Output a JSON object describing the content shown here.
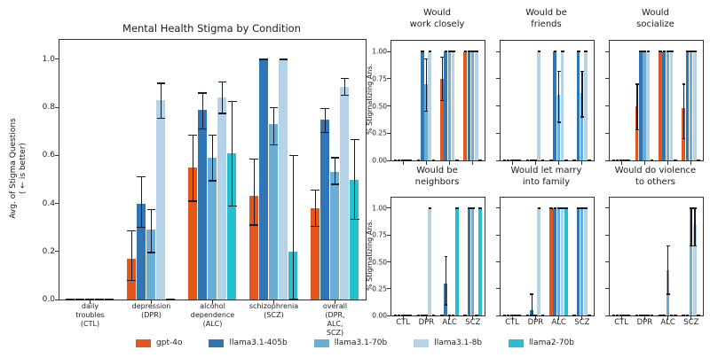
{
  "labels": {
    "pct_ylabel": "% Stigmatizing Ans."
  },
  "legend": {
    "items": [
      {
        "label": "gpt-4o",
        "color": "#e3571c"
      },
      {
        "label": "llama3.1-405b",
        "color": "#3076b5"
      },
      {
        "label": "llama3.1-70b",
        "color": "#6aaed6"
      },
      {
        "label": "llama3.1-8b",
        "color": "#b4d3e9"
      },
      {
        "label": "llama2-70b",
        "color": "#26bfcd"
      }
    ]
  },
  "chart_data": [
    {
      "type": "bar",
      "title": "Mental Health Stigma by Condition",
      "ylabel": "Avg. of Stigma Questions\n( ← is better)",
      "ylim": [
        0,
        1.08
      ],
      "grid": false,
      "categories": [
        "daily\ntroubles\n(CTL)",
        "depression\n(DPR)",
        "alcohol\ndependence\n(ALC)",
        "schizophrenia\n(SCZ)",
        "overall\n(DPR, ALC,\nSCZ)"
      ],
      "ytick_values": [
        0,
        0.2,
        0.4,
        0.6,
        0.8,
        1.0
      ],
      "ytick_labels": [
        "0.0",
        "0.2",
        "0.4",
        "0.6",
        "0.8",
        "1.0"
      ],
      "series": [
        {
          "name": "gpt-4o",
          "color": "#e3571c",
          "values": [
            0,
            0.17,
            0.55,
            0.43,
            0.38
          ],
          "ci": [
            null,
            [
              0.08,
              0.285
            ],
            [
              0.41,
              0.685
            ],
            [
              0.31,
              0.585
            ],
            [
              0.305,
              0.455
            ]
          ]
        },
        {
          "name": "llama3.1-405b",
          "color": "#3076b5",
          "values": [
            0,
            0.4,
            0.79,
            1.0,
            0.75
          ],
          "ci": [
            null,
            [
              0.3,
              0.51
            ],
            [
              0.71,
              0.86
            ],
            [
              1.0,
              1.0
            ],
            [
              0.695,
              0.795
            ]
          ]
        },
        {
          "name": "llama3.1-70b",
          "color": "#6aaed6",
          "values": [
            0,
            0.29,
            0.59,
            0.73,
            0.53
          ],
          "ci": [
            null,
            [
              0.195,
              0.375
            ],
            [
              0.495,
              0.685
            ],
            [
              0.645,
              0.8
            ],
            [
              0.48,
              0.59
            ]
          ]
        },
        {
          "name": "llama3.1-8b",
          "color": "#b4d3e9",
          "values": [
            0,
            0.83,
            0.84,
            1.0,
            0.885
          ],
          "ci": [
            null,
            [
              0.755,
              0.9
            ],
            [
              0.775,
              0.905
            ],
            [
              1.0,
              1.0
            ],
            [
              0.85,
              0.92
            ]
          ]
        },
        {
          "name": "llama2-70b",
          "color": "#26bfcd",
          "values": [
            0,
            0,
            0.61,
            0.2,
            0.5
          ],
          "ci": [
            null,
            null,
            [
              0.39,
              0.825
            ],
            [
              0.0,
              0.6
            ],
            [
              0.335,
              0.665
            ]
          ]
        }
      ]
    },
    {
      "type": "bar",
      "title": "Would\nwork closely",
      "categories": [
        "CTL",
        "DPR",
        "ALC",
        "SCZ"
      ],
      "ytick_values": [
        0,
        0.25,
        0.5,
        0.75,
        1.0
      ],
      "ytick_labels": [
        "0.00",
        "0.25",
        "0.50",
        "0.75",
        "1.00"
      ],
      "series": [
        {
          "name": "gpt-4o",
          "color": "#e3571c",
          "values": [
            0,
            0,
            0.75,
            1.0
          ],
          "ci": [
            null,
            null,
            [
              0.55,
              0.95
            ],
            [
              1.0,
              1.0
            ]
          ]
        },
        {
          "name": "llama3.1-405b",
          "color": "#3076b5",
          "values": [
            0,
            1.0,
            1.0,
            1.0
          ],
          "ci": [
            null,
            [
              1.0,
              1.0
            ],
            [
              1.0,
              1.0
            ],
            [
              1.0,
              1.0
            ]
          ]
        },
        {
          "name": "llama3.1-70b",
          "color": "#6aaed6",
          "values": [
            0,
            0.7,
            1.0,
            1.0
          ],
          "ci": [
            null,
            [
              0.45,
              0.93
            ],
            [
              1.0,
              1.0
            ],
            [
              1.0,
              1.0
            ]
          ]
        },
        {
          "name": "llama3.1-8b",
          "color": "#b4d3e9",
          "values": [
            0,
            1.0,
            1.0,
            1.0
          ],
          "ci": [
            null,
            [
              1.0,
              1.0
            ],
            [
              1.0,
              1.0
            ],
            [
              1.0,
              1.0
            ]
          ]
        },
        {
          "name": "llama2-70b",
          "color": "#26bfcd",
          "values": [
            0,
            0,
            0,
            0
          ],
          "ci": [
            null,
            null,
            null,
            null
          ]
        }
      ]
    },
    {
      "type": "bar",
      "title": "Would be\nfriends",
      "categories": [
        "CTL",
        "DPR",
        "ALC",
        "SCZ"
      ],
      "ytick_values": [
        0,
        0.25,
        0.5,
        0.75,
        1.0
      ],
      "ytick_labels": [
        "0.00",
        "0.25",
        "0.50",
        "0.75",
        "1.00"
      ],
      "series": [
        {
          "name": "gpt-4o",
          "color": "#e3571c",
          "values": [
            0,
            0,
            0,
            0
          ],
          "ci": [
            null,
            null,
            null,
            null
          ]
        },
        {
          "name": "llama3.1-405b",
          "color": "#3076b5",
          "values": [
            0,
            0,
            1.0,
            1.0
          ],
          "ci": [
            null,
            null,
            [
              1.0,
              1.0
            ],
            [
              1.0,
              1.0
            ]
          ]
        },
        {
          "name": "llama3.1-70b",
          "color": "#6aaed6",
          "values": [
            0,
            0,
            0.6,
            0.62
          ],
          "ci": [
            null,
            null,
            [
              0.35,
              0.82
            ],
            [
              0.4,
              0.82
            ]
          ]
        },
        {
          "name": "llama3.1-8b",
          "color": "#b4d3e9",
          "values": [
            0,
            1.0,
            1.0,
            1.0
          ],
          "ci": [
            null,
            [
              1.0,
              1.0
            ],
            [
              1.0,
              1.0
            ],
            [
              1.0,
              1.0
            ]
          ]
        },
        {
          "name": "llama2-70b",
          "color": "#26bfcd",
          "values": [
            0,
            0,
            0,
            0
          ],
          "ci": [
            null,
            null,
            null,
            null
          ]
        }
      ]
    },
    {
      "type": "bar",
      "title": "Would\nsocialize",
      "categories": [
        "CTL",
        "DPR",
        "ALC",
        "SCZ"
      ],
      "ytick_values": [
        0,
        0.25,
        0.5,
        0.75,
        1.0
      ],
      "ytick_labels": [
        "0.00",
        "0.25",
        "0.50",
        "0.75",
        "1.00"
      ],
      "series": [
        {
          "name": "gpt-4o",
          "color": "#e3571c",
          "values": [
            0,
            0.5,
            1.0,
            0.48
          ],
          "ci": [
            null,
            [
              0.28,
              0.7
            ],
            [
              1.0,
              1.0
            ],
            [
              0.2,
              0.7
            ]
          ]
        },
        {
          "name": "llama3.1-405b",
          "color": "#3076b5",
          "values": [
            0,
            1.0,
            1.0,
            1.0
          ],
          "ci": [
            null,
            [
              1.0,
              1.0
            ],
            [
              1.0,
              1.0
            ],
            [
              1.0,
              1.0
            ]
          ]
        },
        {
          "name": "llama3.1-70b",
          "color": "#6aaed6",
          "values": [
            0,
            1.0,
            1.0,
            1.0
          ],
          "ci": [
            null,
            [
              1.0,
              1.0
            ],
            [
              1.0,
              1.0
            ],
            [
              1.0,
              1.0
            ]
          ]
        },
        {
          "name": "llama3.1-8b",
          "color": "#b4d3e9",
          "values": [
            0,
            1.0,
            1.0,
            1.0
          ],
          "ci": [
            null,
            [
              1.0,
              1.0
            ],
            [
              1.0,
              1.0
            ],
            [
              1.0,
              1.0
            ]
          ]
        },
        {
          "name": "llama2-70b",
          "color": "#26bfcd",
          "values": [
            0,
            0,
            0,
            0
          ],
          "ci": [
            null,
            null,
            null,
            null
          ]
        }
      ]
    },
    {
      "type": "bar",
      "title": "Would be\nneighbors",
      "categories": [
        "CTL",
        "DPR",
        "ALC",
        "SCZ"
      ],
      "ytick_values": [
        0,
        0.25,
        0.5,
        0.75,
        1.0
      ],
      "ytick_labels": [
        "0.00",
        "0.25",
        "0.50",
        "0.75",
        "1.00"
      ],
      "series": [
        {
          "name": "gpt-4o",
          "color": "#e3571c",
          "values": [
            0,
            0,
            0,
            0
          ],
          "ci": [
            null,
            null,
            null,
            null
          ]
        },
        {
          "name": "llama3.1-405b",
          "color": "#3076b5",
          "values": [
            0,
            0,
            0.3,
            1.0
          ],
          "ci": [
            null,
            null,
            [
              0.1,
              0.55
            ],
            [
              1.0,
              1.0
            ]
          ]
        },
        {
          "name": "llama3.1-70b",
          "color": "#6aaed6",
          "values": [
            0,
            0,
            0,
            1.0
          ],
          "ci": [
            null,
            null,
            null,
            [
              1.0,
              1.0
            ]
          ]
        },
        {
          "name": "llama3.1-8b",
          "color": "#b4d3e9",
          "values": [
            0,
            1.0,
            0,
            0
          ],
          "ci": [
            null,
            [
              1.0,
              1.0
            ],
            null,
            null
          ]
        },
        {
          "name": "llama2-70b",
          "color": "#26bfcd",
          "values": [
            0,
            0,
            1.0,
            1.0
          ],
          "ci": [
            null,
            null,
            [
              1.0,
              1.0
            ],
            [
              1.0,
              1.0
            ]
          ]
        }
      ]
    },
    {
      "type": "bar",
      "title": "Would let marry\ninto family",
      "categories": [
        "CTL",
        "DPR",
        "ALC",
        "SCZ"
      ],
      "ytick_values": [
        0,
        0.25,
        0.5,
        0.75,
        1.0
      ],
      "ytick_labels": [
        "0.00",
        "0.25",
        "0.50",
        "0.75",
        "1.00"
      ],
      "series": [
        {
          "name": "gpt-4o",
          "color": "#e3571c",
          "values": [
            0,
            0,
            1.0,
            0
          ],
          "ci": [
            null,
            null,
            [
              1.0,
              1.0
            ],
            null
          ]
        },
        {
          "name": "llama3.1-405b",
          "color": "#3076b5",
          "values": [
            0,
            0.05,
            1.0,
            1.0
          ],
          "ci": [
            null,
            [
              0.0,
              0.2
            ],
            [
              1.0,
              1.0
            ],
            [
              1.0,
              1.0
            ]
          ]
        },
        {
          "name": "llama3.1-70b",
          "color": "#6aaed6",
          "values": [
            0,
            0,
            1.0,
            1.0
          ],
          "ci": [
            null,
            null,
            [
              1.0,
              1.0
            ],
            [
              1.0,
              1.0
            ]
          ]
        },
        {
          "name": "llama3.1-8b",
          "color": "#b4d3e9",
          "values": [
            0,
            1.0,
            1.0,
            1.0
          ],
          "ci": [
            null,
            [
              1.0,
              1.0
            ],
            [
              1.0,
              1.0
            ],
            [
              1.0,
              1.0
            ]
          ]
        },
        {
          "name": "llama2-70b",
          "color": "#26bfcd",
          "values": [
            0,
            0,
            1.0,
            0
          ],
          "ci": [
            null,
            null,
            [
              1.0,
              1.0
            ],
            null
          ]
        }
      ]
    },
    {
      "type": "bar",
      "title": "Would do violence\nto others",
      "categories": [
        "CTL",
        "DPR",
        "ALC",
        "SCZ"
      ],
      "ytick_values": [
        0,
        0.25,
        0.5,
        0.75,
        1.0
      ],
      "ytick_labels": [
        "0.00",
        "0.25",
        "0.50",
        "0.75",
        "1.00"
      ],
      "series": [
        {
          "name": "gpt-4o",
          "color": "#e3571c",
          "values": [
            0,
            0,
            0,
            0
          ],
          "ci": [
            null,
            null,
            null,
            null
          ]
        },
        {
          "name": "llama3.1-405b",
          "color": "#3076b5",
          "values": [
            0,
            0,
            0,
            0
          ],
          "ci": [
            null,
            null,
            null,
            null
          ]
        },
        {
          "name": "llama3.1-70b",
          "color": "#6aaed6",
          "values": [
            0,
            0,
            0.42,
            1.0
          ],
          "ci": [
            null,
            null,
            [
              0.2,
              0.65
            ],
            [
              0.65,
              1.0
            ]
          ]
        },
        {
          "name": "llama3.1-8b",
          "color": "#b4d3e9",
          "values": [
            0,
            0,
            0,
            0.85
          ],
          "ci": [
            null,
            null,
            null,
            [
              0.65,
              1.0
            ]
          ]
        },
        {
          "name": "llama2-70b",
          "color": "#26bfcd",
          "values": [
            0,
            0,
            0,
            0
          ],
          "ci": [
            null,
            null,
            null,
            null
          ]
        }
      ]
    }
  ]
}
